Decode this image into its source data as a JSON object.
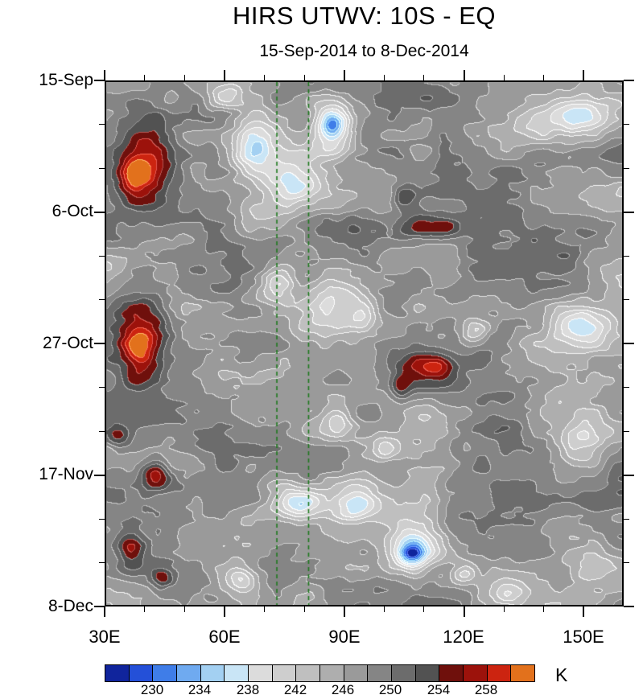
{
  "chart_data": {
    "type": "heatmap",
    "title": "HIRS UTWV: 10S - EQ",
    "subtitle": "15-Sep-2014 to 8-Dec-2014",
    "value_unit": "K",
    "x_axis": {
      "ticks": [
        "30E",
        "60E",
        "90E",
        "120E",
        "150E"
      ],
      "range_deg": [
        30,
        160
      ],
      "major_step_deg": 30,
      "minor_step_deg": 10
    },
    "y_axis": {
      "ticks": [
        "15-Sep",
        "6-Oct",
        "27-Oct",
        "17-Nov",
        "8-Dec"
      ],
      "range_days": [
        0,
        84
      ],
      "major_step_days": 21,
      "minor_step_days": 7
    },
    "colorbar": {
      "unit": "K",
      "labels": [
        "230",
        "234",
        "238",
        "242",
        "246",
        "250",
        "254",
        "258"
      ],
      "colors": [
        "#10249c",
        "#2450d8",
        "#3f7de8",
        "#6faaf0",
        "#a3d0f2",
        "#c9e5f6",
        "#dcdcdc",
        "#cecece",
        "#bfbfbf",
        "#aeaeae",
        "#9a9a9a",
        "#858585",
        "#6c6c6c",
        "#525252",
        "#6f100c",
        "#9c120b",
        "#cc2410",
        "#e2711c"
      ]
    },
    "reference_lines": {
      "lons_deg": [
        73,
        81
      ],
      "color": "#1e7a1e",
      "style": "dashed"
    },
    "field": {
      "base": 247.8,
      "level_min": 228,
      "level_max": 260,
      "level_step": 2,
      "anomaly_format": [
        "lon_deg",
        "day_offset",
        "sigma_lon_deg",
        "sigma_day",
        "delta_K"
      ],
      "anomalies": [
        [
          40,
          13,
          5.5,
          5,
          13
        ],
        [
          37,
          15,
          2.2,
          1.6,
          5
        ],
        [
          39,
          41,
          5,
          5.5,
          11
        ],
        [
          38,
          43,
          2,
          1.8,
          4
        ],
        [
          42,
          63,
          2.6,
          1.5,
          8
        ],
        [
          36,
          75,
          2.6,
          1.8,
          7
        ],
        [
          44,
          80,
          2,
          1.2,
          6
        ],
        [
          33,
          57,
          2,
          1.3,
          6
        ],
        [
          105,
          18,
          2.2,
          1.3,
          6
        ],
        [
          110,
          23.5,
          6,
          1.8,
          8
        ],
        [
          116,
          23,
          2.3,
          1,
          4
        ],
        [
          110,
          45,
          5,
          1.8,
          8
        ],
        [
          114,
          45.5,
          2.3,
          1,
          4
        ],
        [
          104,
          49,
          2,
          1.3,
          6
        ],
        [
          55,
          25,
          11,
          7,
          2.5
        ],
        [
          120,
          14,
          10,
          5,
          2
        ],
        [
          85,
          24,
          6,
          2.5,
          3
        ],
        [
          112,
          1,
          10,
          2,
          3
        ],
        [
          135,
          30,
          12,
          4,
          3
        ],
        [
          50,
          55,
          10,
          4,
          2.5
        ],
        [
          45,
          70,
          9,
          5,
          2.5
        ],
        [
          45,
          78,
          8,
          3,
          3
        ],
        [
          130,
          60,
          12,
          7,
          2
        ],
        [
          67,
          10,
          4,
          4,
          -12
        ],
        [
          87,
          7,
          3.5,
          3,
          -13
        ],
        [
          87,
          7,
          1.8,
          1.1,
          -5
        ],
        [
          77,
          16,
          5,
          3,
          -9
        ],
        [
          60,
          2,
          3,
          1.5,
          -7
        ],
        [
          150,
          5,
          6,
          2.5,
          -9
        ],
        [
          88,
          36,
          7,
          3,
          -11
        ],
        [
          95,
          37.5,
          2.5,
          1.4,
          -5
        ],
        [
          73,
          33,
          3,
          2,
          -8
        ],
        [
          150,
          39,
          5,
          2,
          -9
        ],
        [
          123,
          40,
          2.5,
          1.4,
          -6
        ],
        [
          150,
          58,
          5,
          2.5,
          -9
        ],
        [
          88,
          55,
          3,
          2,
          -7
        ],
        [
          100,
          59,
          2.5,
          1.5,
          -6
        ],
        [
          78,
          67.5,
          5,
          1.8,
          -11
        ],
        [
          93,
          68,
          4,
          2,
          -10
        ],
        [
          107,
          75,
          4.5,
          2.5,
          -13
        ],
        [
          107,
          76,
          2,
          1.1,
          -8
        ],
        [
          131,
          82,
          4,
          1.5,
          -9
        ],
        [
          120,
          79,
          2.5,
          1.2,
          -6
        ],
        [
          64,
          80,
          2.5,
          1.5,
          -7
        ],
        [
          70,
          22,
          8,
          3,
          -4
        ],
        [
          95,
          70,
          10,
          4,
          -4
        ],
        [
          145,
          48,
          8,
          6,
          -3
        ],
        [
          150,
          78,
          6,
          2.5,
          -5
        ],
        [
          140,
          8,
          8,
          3,
          -3
        ]
      ],
      "noise_octaves": [
        {
          "seed": 11,
          "nx": 8,
          "ny": 14,
          "amp": 2.8
        },
        {
          "seed": 23,
          "nx": 18,
          "ny": 30,
          "amp": 1.6
        },
        {
          "seed": 47,
          "nx": 40,
          "ny": 70,
          "amp": 0.8
        }
      ]
    }
  }
}
